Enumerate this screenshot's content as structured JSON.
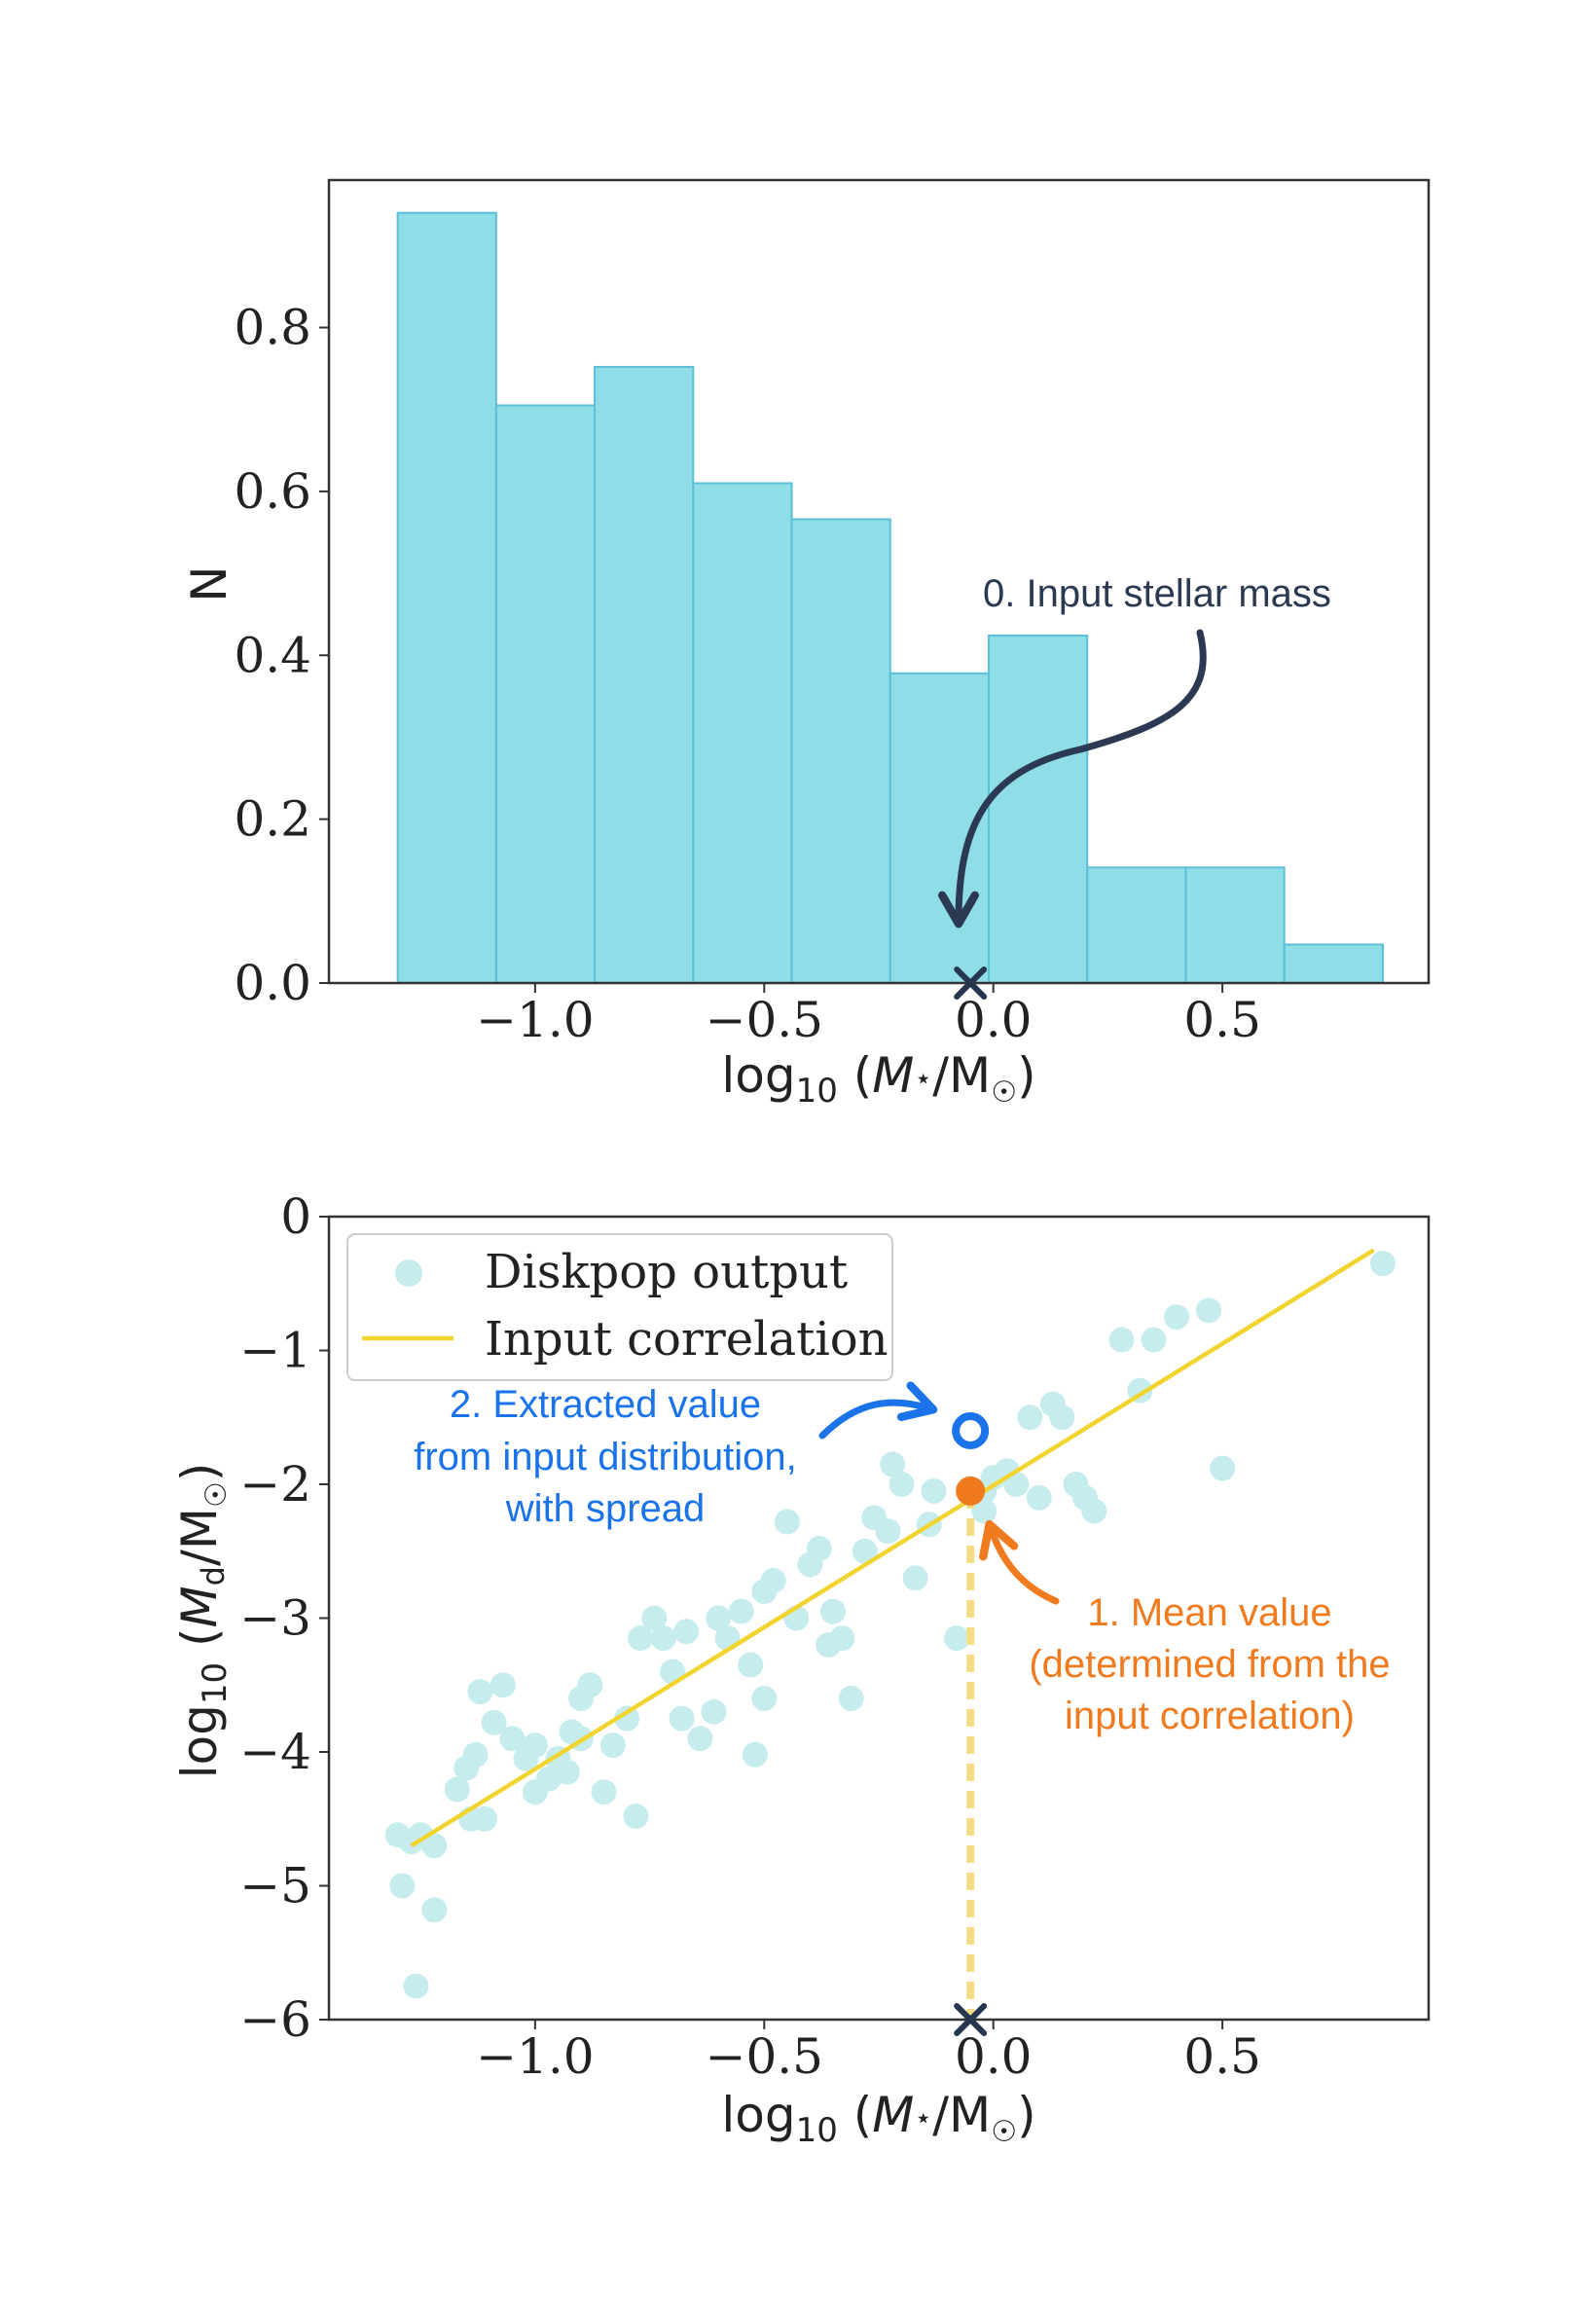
{
  "colors": {
    "bar_fill": "#8fdde6",
    "bar_edge": "#5bbfd6",
    "scatter": "#c6eced",
    "line": "#f2d431",
    "dashed": "#f5dd85",
    "marker_x": "#26364f",
    "arrow_dark": "#2b3a52",
    "blue": "#1a73e8",
    "orange": "#f07a1e"
  },
  "chart_data": [
    {
      "type": "bar",
      "xlabel": "log₁₀ (M⋆/M☉)",
      "ylabel": "N",
      "xlim": [
        -1.45,
        0.95
      ],
      "ylim": [
        0,
        0.98
      ],
      "xticks": [
        -1.0,
        -0.5,
        0.0,
        0.5
      ],
      "xtick_labels": [
        "−1.0",
        "−0.5",
        "0.0",
        "0.5"
      ],
      "yticks": [
        0.0,
        0.2,
        0.4,
        0.6,
        0.8
      ],
      "ytick_labels": [
        "0.0",
        "0.2",
        "0.4",
        "0.6",
        "0.8"
      ],
      "bin_edges": [
        -1.3,
        -1.085,
        -0.87,
        -0.655,
        -0.44,
        -0.225,
        -0.01,
        0.205,
        0.42,
        0.635,
        0.85
      ],
      "values": [
        0.94,
        0.705,
        0.752,
        0.61,
        0.566,
        0.378,
        0.424,
        0.141,
        0.141,
        0.047
      ],
      "marker_x": {
        "x": -0.05,
        "y": 0.0
      },
      "annotation": {
        "label": "0. Input stellar mass"
      }
    },
    {
      "type": "scatter",
      "xlabel": "log₁₀ (Md/M☉)",
      "xlabel_x": "log₁₀ (M⋆/M☉)",
      "ylabel": "log₁₀ (Md/M☉)",
      "xlim": [
        -1.45,
        0.95
      ],
      "ylim": [
        -6.0,
        0.0
      ],
      "xticks": [
        -1.0,
        -0.5,
        0.0,
        0.5
      ],
      "xtick_labels": [
        "−1.0",
        "−0.5",
        "0.0",
        "0.5"
      ],
      "yticks": [
        0,
        -1,
        -2,
        -3,
        -4,
        -5,
        -6
      ],
      "ytick_labels": [
        "0",
        "−1",
        "−2",
        "−3",
        "−4",
        "−5",
        "−6"
      ],
      "legend": [
        {
          "label": "Diskpop output"
        },
        {
          "label": "Input correlation"
        }
      ],
      "line": {
        "x": [
          -1.27,
          0.83
        ],
        "y": [
          -4.7,
          -0.25
        ]
      },
      "points": [
        [
          -1.3,
          -4.62
        ],
        [
          -1.27,
          -4.67
        ],
        [
          -1.25,
          -4.62
        ],
        [
          -1.22,
          -4.7
        ],
        [
          -1.29,
          -5.0
        ],
        [
          -1.22,
          -5.18
        ],
        [
          -1.26,
          -5.75
        ],
        [
          -1.17,
          -4.28
        ],
        [
          -1.15,
          -4.12
        ],
        [
          -1.13,
          -4.02
        ],
        [
          -1.14,
          -4.5
        ],
        [
          -1.11,
          -4.5
        ],
        [
          -1.12,
          -3.55
        ],
        [
          -1.07,
          -3.5
        ],
        [
          -1.09,
          -3.78
        ],
        [
          -1.05,
          -3.9
        ],
        [
          -1.02,
          -4.05
        ],
        [
          -1.0,
          -4.3
        ],
        [
          -0.97,
          -4.2
        ],
        [
          -0.95,
          -4.05
        ],
        [
          -0.92,
          -3.85
        ],
        [
          -0.9,
          -3.6
        ],
        [
          -0.88,
          -3.5
        ],
        [
          -0.93,
          -4.15
        ],
        [
          -0.85,
          -4.3
        ],
        [
          -0.83,
          -3.95
        ],
        [
          -0.8,
          -3.75
        ],
        [
          -0.78,
          -4.48
        ],
        [
          -0.77,
          -3.15
        ],
        [
          -0.74,
          -3.0
        ],
        [
          -0.72,
          -3.15
        ],
        [
          -0.7,
          -3.4
        ],
        [
          -0.68,
          -3.75
        ],
        [
          -0.64,
          -3.9
        ],
        [
          -0.61,
          -3.7
        ],
        [
          -0.58,
          -3.15
        ],
        [
          -0.55,
          -2.95
        ],
        [
          -0.53,
          -3.35
        ],
        [
          -0.5,
          -3.6
        ],
        [
          -0.48,
          -2.72
        ],
        [
          -0.45,
          -2.28
        ],
        [
          -0.43,
          -3.0
        ],
        [
          -0.4,
          -2.6
        ],
        [
          -0.38,
          -2.48
        ],
        [
          -0.35,
          -2.95
        ],
        [
          -0.33,
          -3.15
        ],
        [
          -0.31,
          -3.6
        ],
        [
          -0.28,
          -2.5
        ],
        [
          -0.26,
          -2.25
        ],
        [
          -0.23,
          -2.35
        ],
        [
          -0.22,
          -1.85
        ],
        [
          -0.2,
          -2.0
        ],
        [
          -0.17,
          -2.7
        ],
        [
          -0.13,
          -2.05
        ],
        [
          -0.08,
          -3.15
        ],
        [
          -0.02,
          -2.05
        ],
        [
          0.0,
          -1.95
        ],
        [
          0.05,
          -2.0
        ],
        [
          0.08,
          -1.5
        ],
        [
          0.1,
          -2.1
        ],
        [
          0.13,
          -1.4
        ],
        [
          0.15,
          -1.5
        ],
        [
          0.18,
          -2.0
        ],
        [
          0.2,
          -2.1
        ],
        [
          0.22,
          -2.2
        ],
        [
          0.28,
          -0.92
        ],
        [
          0.32,
          -1.3
        ],
        [
          0.35,
          -0.92
        ],
        [
          0.4,
          -0.75
        ],
        [
          0.47,
          -0.7
        ],
        [
          0.5,
          -1.88
        ],
        [
          0.85,
          -0.35
        ],
        [
          -0.52,
          -4.02
        ],
        [
          -0.6,
          -3.0
        ],
        [
          -0.67,
          -3.1
        ],
        [
          -0.36,
          -3.2
        ],
        [
          -0.14,
          -2.3
        ],
        [
          -0.02,
          -2.2
        ],
        [
          0.03,
          -1.9
        ],
        [
          -0.5,
          -2.8
        ],
        [
          -0.9,
          -3.9
        ],
        [
          -1.0,
          -3.95
        ]
      ],
      "mean_point": {
        "x": -0.05,
        "y": -2.05
      },
      "extracted_point": {
        "x": -0.05,
        "y": -1.6
      },
      "marker_x": {
        "x": -0.05,
        "y": -6.0
      },
      "annotations": {
        "extracted": [
          "2. Extracted value",
          "from input distribution,",
          "with spread"
        ],
        "mean": [
          "1. Mean value",
          "(determined from the",
          "input correlation)"
        ]
      }
    }
  ]
}
